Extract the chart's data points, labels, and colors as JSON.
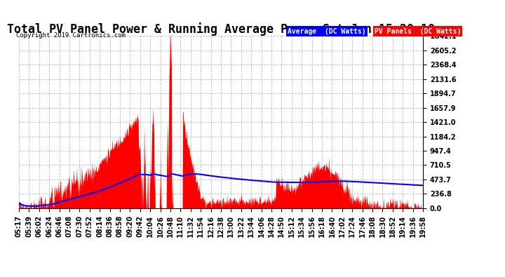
{
  "title": "Total PV Panel Power & Running Average Power Sat Jun 15 20:10",
  "copyright": "Copyright 2019 Cartronics.com",
  "legend_avg": "Average  (DC Watts)",
  "legend_pv": "PV Panels  (DC Watts)",
  "y_max": 2842.1,
  "y_min": 0.0,
  "y_ticks": [
    0.0,
    236.8,
    473.7,
    710.5,
    947.4,
    1184.2,
    1421.0,
    1657.9,
    1894.7,
    2131.6,
    2368.4,
    2605.2,
    2842.1
  ],
  "bg_color": "#ffffff",
  "plot_bg_color": "#ffffff",
  "grid_color": "#bbbbbb",
  "pv_color": "#ff0000",
  "avg_color": "#0000ff",
  "title_fontsize": 12,
  "tick_fontsize": 7,
  "x_tick_labels": [
    "05:17",
    "05:39",
    "06:02",
    "06:24",
    "06:46",
    "07:08",
    "07:30",
    "07:52",
    "08:14",
    "08:36",
    "08:58",
    "09:20",
    "09:42",
    "10:04",
    "10:26",
    "10:48",
    "11:10",
    "11:32",
    "11:54",
    "12:16",
    "12:38",
    "13:00",
    "13:22",
    "13:44",
    "14:06",
    "14:28",
    "14:50",
    "15:12",
    "15:34",
    "15:56",
    "16:18",
    "16:40",
    "17:02",
    "17:24",
    "17:46",
    "18:08",
    "18:30",
    "18:52",
    "19:14",
    "19:36",
    "19:58"
  ]
}
